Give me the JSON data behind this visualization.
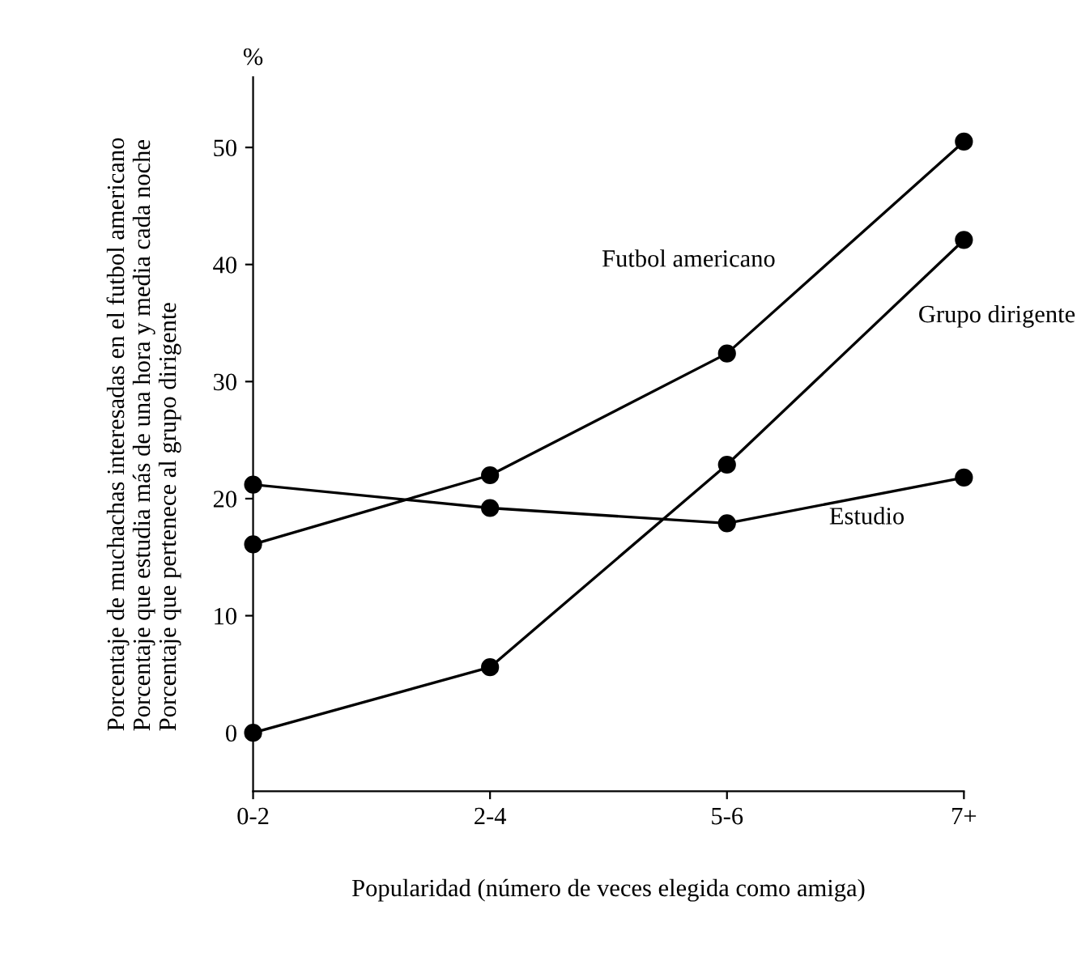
{
  "chart_data": {
    "type": "line",
    "categories": [
      "0-2",
      "2-4",
      "5-6",
      "7+"
    ],
    "series": [
      {
        "name": "Futbol americano",
        "color": "#000000",
        "values": [
          16.1,
          22.0,
          32.4,
          50.5
        ]
      },
      {
        "name": "Grupo dirigente",
        "color": "#000000",
        "values": [
          0,
          5.6,
          22.9,
          42.1
        ]
      },
      {
        "name": "Estudio",
        "color": "#000000",
        "values": [
          21.2,
          19.2,
          17.9,
          21.8
        ]
      }
    ],
    "xlabel": "Popularidad (número de veces elegida como amiga)",
    "ylabel": "Porcentaje de muchachas interesadas en el futbol americano\nPorcentaje que estudia más de una hora y media cada noche\nPorcentaje que pertenece al grupo dirigente",
    "annotations": [
      "%"
    ],
    "ylim": [
      -5,
      56
    ],
    "yticks": [
      0,
      10,
      20,
      30,
      40,
      50
    ],
    "marker": "circle",
    "line_style": "solid",
    "grid": false,
    "legend": false
  }
}
